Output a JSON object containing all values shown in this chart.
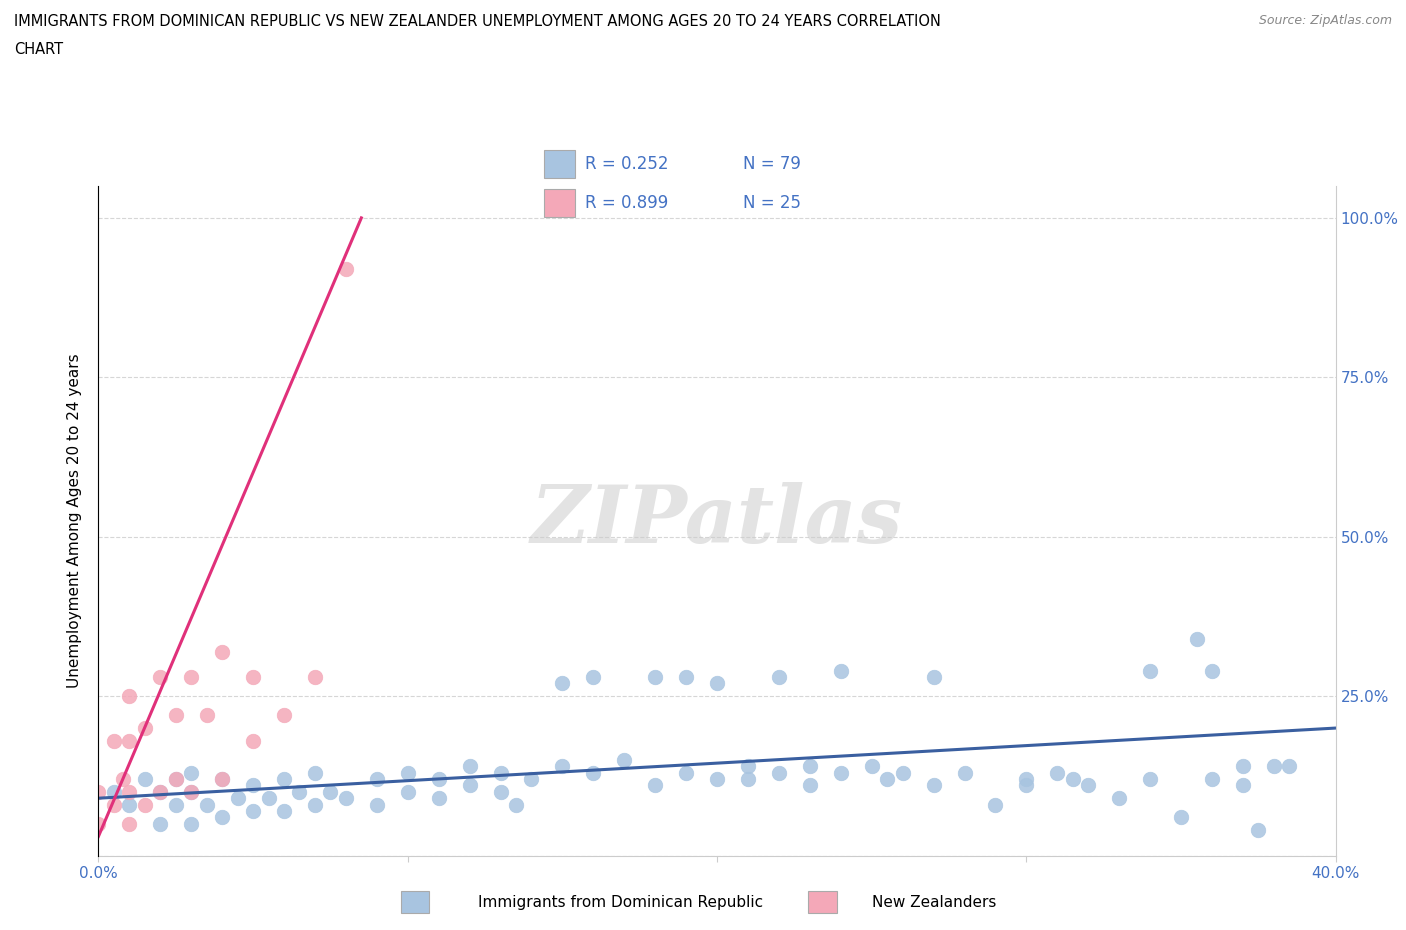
{
  "title_line1": "IMMIGRANTS FROM DOMINICAN REPUBLIC VS NEW ZEALANDER UNEMPLOYMENT AMONG AGES 20 TO 24 YEARS CORRELATION",
  "title_line2": "CHART",
  "source": "Source: ZipAtlas.com",
  "ylabel": "Unemployment Among Ages 20 to 24 years",
  "xlim": [
    0.0,
    0.4
  ],
  "ylim": [
    0.0,
    1.05
  ],
  "R_blue": 0.252,
  "N_blue": 79,
  "R_pink": 0.899,
  "N_pink": 25,
  "blue_color": "#a8c4e0",
  "pink_color": "#f4a8b8",
  "blue_line_color": "#3a5fa0",
  "pink_line_color": "#e0307a",
  "legend_label_blue": "Immigrants from Dominican Republic",
  "legend_label_pink": "New Zealanders",
  "watermark": "ZIPatlas",
  "blue_scatter_x": [
    0.005,
    0.01,
    0.015,
    0.02,
    0.02,
    0.025,
    0.025,
    0.03,
    0.03,
    0.03,
    0.035,
    0.04,
    0.04,
    0.045,
    0.05,
    0.05,
    0.055,
    0.06,
    0.06,
    0.065,
    0.07,
    0.07,
    0.075,
    0.08,
    0.09,
    0.09,
    0.1,
    0.1,
    0.11,
    0.11,
    0.12,
    0.12,
    0.13,
    0.13,
    0.135,
    0.14,
    0.15,
    0.15,
    0.16,
    0.16,
    0.17,
    0.18,
    0.18,
    0.19,
    0.19,
    0.2,
    0.2,
    0.21,
    0.21,
    0.22,
    0.22,
    0.23,
    0.23,
    0.24,
    0.24,
    0.25,
    0.255,
    0.26,
    0.27,
    0.27,
    0.28,
    0.29,
    0.3,
    0.3,
    0.31,
    0.315,
    0.32,
    0.33,
    0.34,
    0.34,
    0.35,
    0.355,
    0.36,
    0.36,
    0.37,
    0.37,
    0.375,
    0.38,
    0.385
  ],
  "blue_scatter_y": [
    0.1,
    0.08,
    0.12,
    0.05,
    0.1,
    0.08,
    0.12,
    0.05,
    0.1,
    0.13,
    0.08,
    0.06,
    0.12,
    0.09,
    0.07,
    0.11,
    0.09,
    0.07,
    0.12,
    0.1,
    0.08,
    0.13,
    0.1,
    0.09,
    0.08,
    0.12,
    0.1,
    0.13,
    0.09,
    0.12,
    0.11,
    0.14,
    0.1,
    0.13,
    0.08,
    0.12,
    0.27,
    0.14,
    0.28,
    0.13,
    0.15,
    0.11,
    0.28,
    0.13,
    0.28,
    0.12,
    0.27,
    0.14,
    0.12,
    0.13,
    0.28,
    0.14,
    0.11,
    0.13,
    0.29,
    0.14,
    0.12,
    0.13,
    0.11,
    0.28,
    0.13,
    0.08,
    0.12,
    0.11,
    0.13,
    0.12,
    0.11,
    0.09,
    0.12,
    0.29,
    0.06,
    0.34,
    0.12,
    0.29,
    0.11,
    0.14,
    0.04,
    0.14,
    0.14
  ],
  "pink_scatter_x": [
    0.0,
    0.0,
    0.005,
    0.005,
    0.008,
    0.01,
    0.01,
    0.01,
    0.01,
    0.015,
    0.015,
    0.02,
    0.02,
    0.025,
    0.025,
    0.03,
    0.03,
    0.035,
    0.04,
    0.04,
    0.05,
    0.05,
    0.06,
    0.07,
    0.08
  ],
  "pink_scatter_y": [
    0.05,
    0.1,
    0.08,
    0.18,
    0.12,
    0.05,
    0.1,
    0.18,
    0.25,
    0.08,
    0.2,
    0.1,
    0.28,
    0.12,
    0.22,
    0.1,
    0.28,
    0.22,
    0.12,
    0.32,
    0.18,
    0.28,
    0.22,
    0.28,
    0.92
  ],
  "blue_trend_x": [
    0.0,
    0.4
  ],
  "blue_trend_y": [
    0.09,
    0.2
  ],
  "pink_trend_x": [
    0.0,
    0.085
  ],
  "pink_trend_y": [
    0.03,
    1.0
  ]
}
